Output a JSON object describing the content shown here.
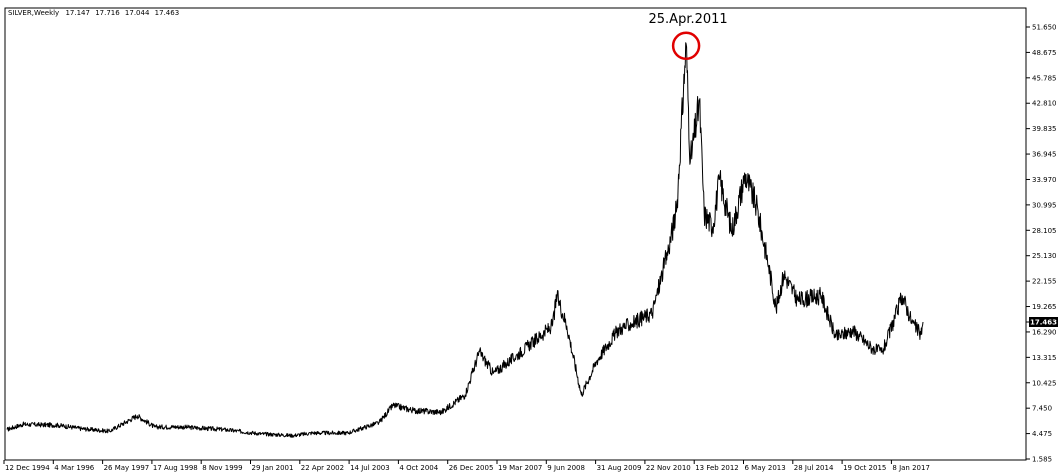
{
  "chart_data": {
    "type": "line",
    "title": "SILVER,Weekly",
    "ohlc": {
      "open": "17.147",
      "high": "17.716",
      "low": "17.044",
      "close": "17.463"
    },
    "current_price": "17.463",
    "annotation": "25.Apr.2011",
    "y_ticks": [
      "51.650",
      "48.675",
      "45.785",
      "42.810",
      "39.835",
      "36.945",
      "33.970",
      "30.995",
      "28.105",
      "25.130",
      "22.155",
      "19.265",
      "16.290",
      "13.315",
      "10.425",
      "7.450",
      "4.475",
      "1.585"
    ],
    "x_ticks": [
      "12 Dec 1994",
      "4 Mar 1996",
      "26 May 1997",
      "17 Aug 1998",
      "8 Nov 1999",
      "29 Jan 2001",
      "22 Apr 2002",
      "14 Jul 2003",
      "4 Oct 2004",
      "26 Dec 2005",
      "19 Mar 2007",
      "9 Jun 2008",
      "31 Aug 2009",
      "22 Nov 2010",
      "13 Feb 2012",
      "6 May 2013",
      "28 Jul 2014",
      "19 Oct 2015",
      "8 Jan 2017"
    ],
    "ylim": [
      1.585,
      51.65
    ],
    "xlim": [
      "1994-12-12",
      "2017-01-08"
    ],
    "grid": false,
    "colors": {
      "line": "#000000",
      "highlight_circle": "#e00000",
      "price_tag": "#000000"
    },
    "series": [
      {
        "x": [
          "1994-12-12",
          "1995-05-01",
          "1996-03-04",
          "1996-10-01",
          "1997-06-01",
          "1998-02-01",
          "1998-07-01",
          "1999-03-01",
          "2000-03-01",
          "2001-01-29",
          "2001-11-01",
          "2002-04-22",
          "2003-03-01",
          "2003-07-14",
          "2003-12-01",
          "2004-04-01",
          "2004-10-04",
          "2005-06-01",
          "2005-12-26",
          "2006-05-01",
          "2006-09-01",
          "2007-03-19",
          "2008-02-01",
          "2008-03-15",
          "2008-06-09",
          "2008-10-15",
          "2009-03-01",
          "2009-08-31",
          "2010-02-01",
          "2010-07-01",
          "2010-11-22",
          "2011-02-01",
          "2011-04-25",
          "2011-06-01",
          "2011-08-20",
          "2011-10-01",
          "2011-12-15",
          "2012-02-13",
          "2012-06-01",
          "2012-09-25",
          "2013-01-01",
          "2013-04-20",
          "2013-06-25",
          "2013-09-01",
          "2014-01-01",
          "2014-07-28",
          "2014-12-01",
          "2015-05-01",
          "2015-10-19",
          "2016-01-15",
          "2016-03-01",
          "2016-07-10",
          "2016-10-01",
          "2016-12-20",
          "2017-01-08"
        ],
        "y": [
          5.0,
          5.6,
          5.5,
          5.1,
          4.8,
          6.6,
          5.3,
          5.3,
          5.0,
          4.5,
          4.3,
          4.6,
          4.6,
          5.2,
          5.8,
          7.8,
          7.2,
          7.0,
          9.0,
          14.0,
          11.5,
          13.5,
          17.0,
          20.5,
          17.0,
          9.0,
          13.0,
          16.5,
          17.5,
          18.5,
          26.0,
          30.5,
          49.7,
          36.0,
          43.0,
          30.0,
          28.5,
          34.0,
          28.0,
          34.5,
          31.0,
          24.0,
          19.0,
          23.0,
          20.0,
          20.5,
          15.7,
          16.5,
          14.4,
          14.0,
          15.5,
          20.5,
          17.5,
          16.0,
          17.463
        ]
      }
    ]
  }
}
